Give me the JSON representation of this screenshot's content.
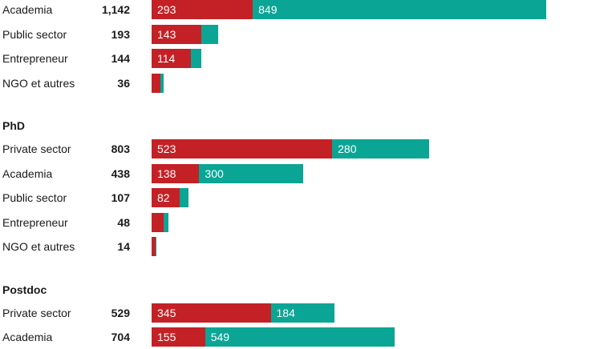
{
  "colors": {
    "series_a": "#c42126",
    "series_b": "#0aa595"
  },
  "chart_data": {
    "type": "bar",
    "orientation": "horizontal",
    "stacked": true,
    "show_segment_labels": true,
    "groups": [
      {
        "title": "",
        "rows": [
          {
            "category": "Academia",
            "total": "1,142",
            "a": 293,
            "b": 849,
            "label_a": "293",
            "label_b": "849"
          },
          {
            "category": "Public sector",
            "total": "193",
            "a": 143,
            "b": 50,
            "label_a": "143",
            "label_b": ""
          },
          {
            "category": "Entrepreneur",
            "total": "144",
            "a": 114,
            "b": 30,
            "label_a": "114",
            "label_b": ""
          },
          {
            "category": "NGO et autres",
            "total": "36",
            "a": 26,
            "b": 10,
            "label_a": "",
            "label_b": ""
          }
        ]
      },
      {
        "title": "PhD",
        "rows": [
          {
            "category": "Private sector",
            "total": "803",
            "a": 523,
            "b": 280,
            "label_a": "523",
            "label_b": "280"
          },
          {
            "category": "Academia",
            "total": "438",
            "a": 138,
            "b": 300,
            "label_a": "138",
            "label_b": "300"
          },
          {
            "category": "Public sector",
            "total": "107",
            "a": 82,
            "b": 25,
            "label_a": "82",
            "label_b": ""
          },
          {
            "category": "Entrepreneur",
            "total": "48",
            "a": 36,
            "b": 12,
            "label_a": "",
            "label_b": ""
          },
          {
            "category": "NGO et autres",
            "total": "14",
            "a": 11,
            "b": 3,
            "label_a": "",
            "label_b": ""
          }
        ]
      },
      {
        "title": "Postdoc",
        "rows": [
          {
            "category": "Private sector",
            "total": "529",
            "a": 345,
            "b": 184,
            "label_a": "345",
            "label_b": "184"
          },
          {
            "category": "Academia",
            "total": "704",
            "a": 155,
            "b": 549,
            "label_a": "155",
            "label_b": "549"
          }
        ]
      }
    ]
  }
}
